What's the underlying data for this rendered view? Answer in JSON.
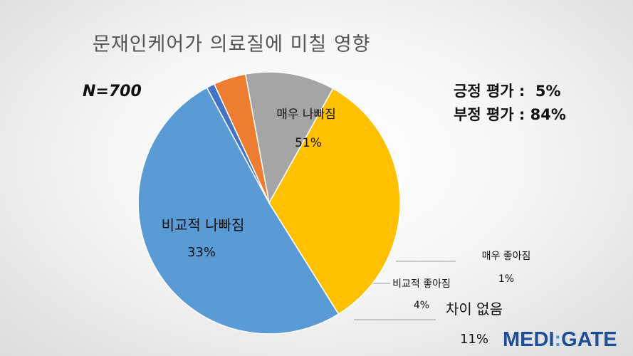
{
  "title": "문재인케어가 의료질에 미칠 영향",
  "sample_label": "N=700",
  "summary": {
    "positive": "긍정 평가 :  5%",
    "negative": "부정 평가 : 84%"
  },
  "logo": {
    "part1": "MEDI",
    "sep": ":",
    "part2": "GATE"
  },
  "chart_data": {
    "type": "pie",
    "title": "문재인케어가 의료질에 미칠 영향",
    "slices": [
      {
        "label": "매우 나빠짐",
        "value": 51,
        "display": "51%",
        "color": "#5b9bd5"
      },
      {
        "label": "매우 좋아짐",
        "value": 1,
        "display": "1%",
        "color": "#4472c4"
      },
      {
        "label": "비교적 좋아짐",
        "value": 4,
        "display": "4%",
        "color": "#ed7d31"
      },
      {
        "label": "차이 없음",
        "value": 11,
        "display": "11%",
        "color": "#a5a5a5"
      },
      {
        "label": "비교적 나빠짐",
        "value": 33,
        "display": "33%",
        "color": "#ffc000"
      }
    ]
  }
}
